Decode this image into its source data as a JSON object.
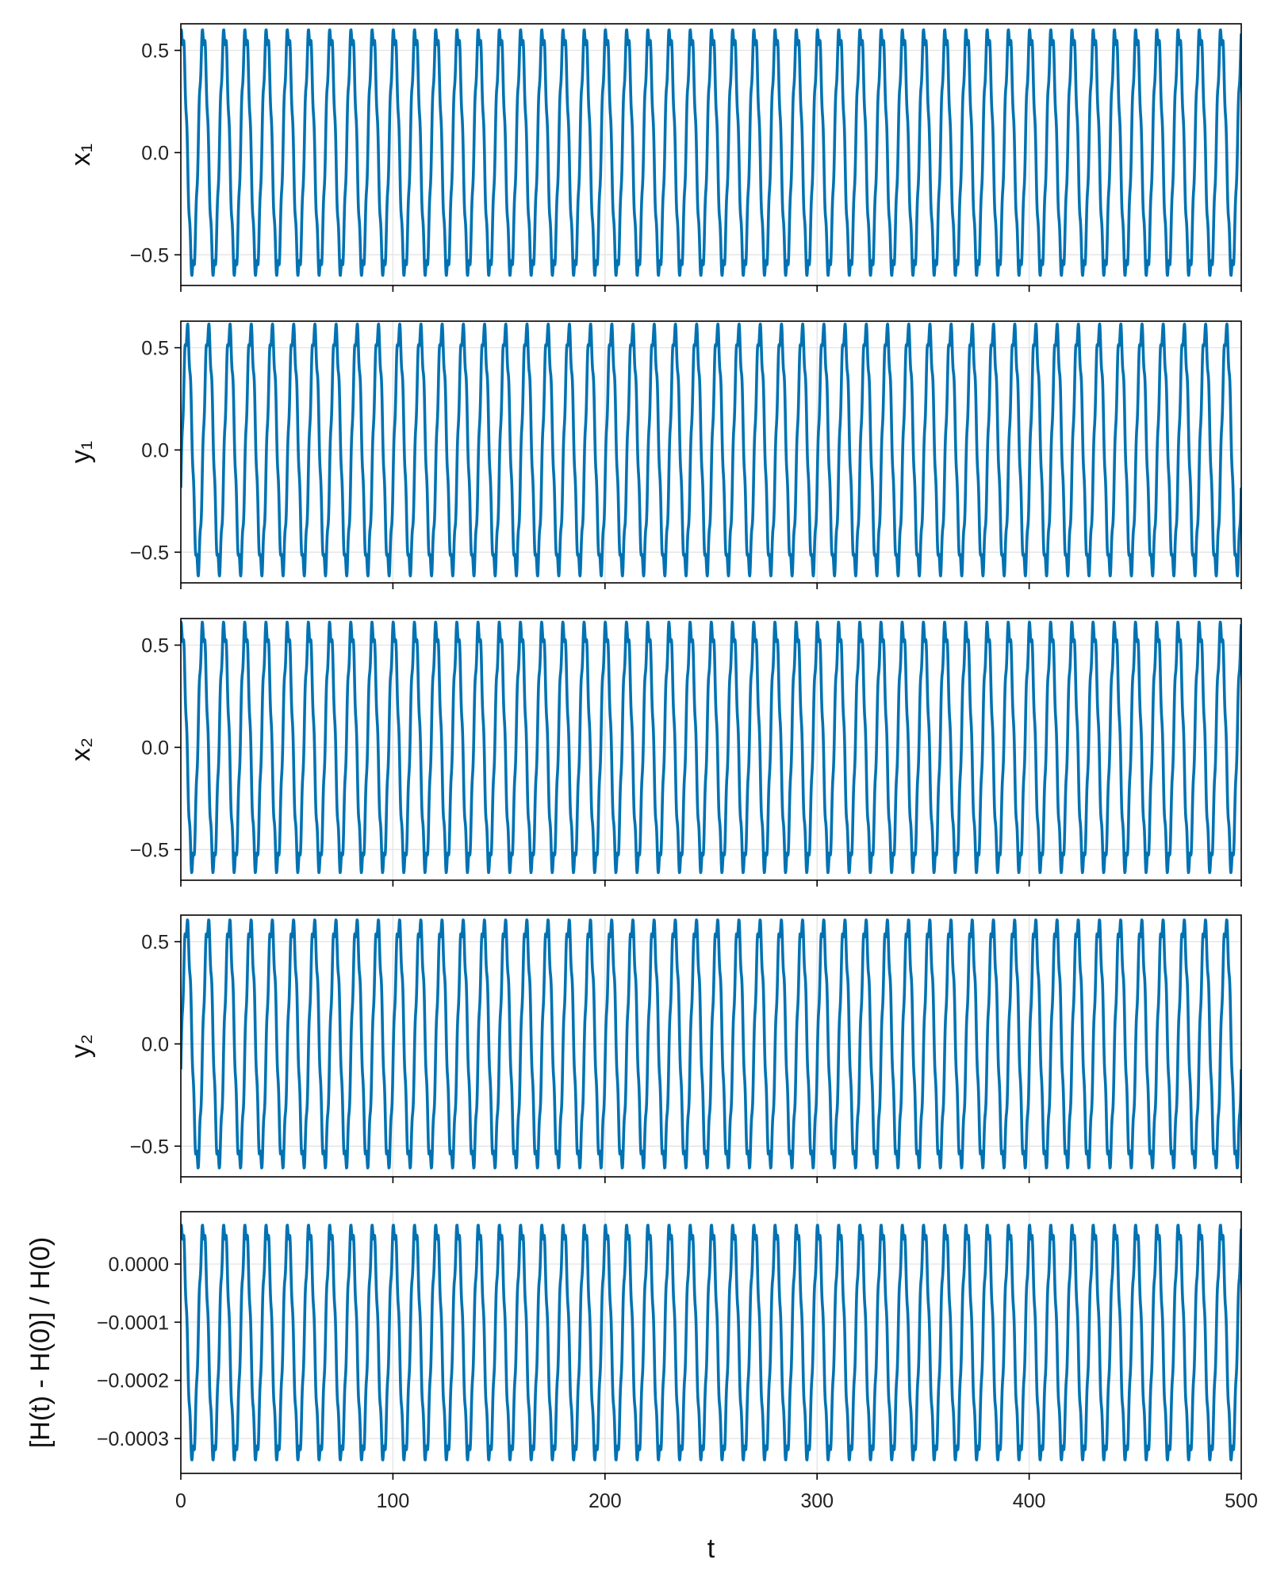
{
  "chart_data": [
    {
      "type": "line",
      "ylabel": "x₁",
      "xlim": [
        0,
        500
      ],
      "ylim": [
        -0.65,
        0.63
      ],
      "x_ticks": [
        0,
        100,
        200,
        300,
        400,
        500
      ],
      "y_ticks": [
        -0.5,
        0.0,
        0.5
      ],
      "y_tick_labels": [
        "−0.5",
        "0.0",
        "0.5"
      ],
      "show_x_tick_labels": false,
      "grid": true,
      "series": [
        {
          "color": "#0072b2",
          "amplitude": 0.58,
          "period": 10.0,
          "phase": 1.2,
          "offset": 0.0,
          "harmonic": 0.09
        }
      ]
    },
    {
      "type": "line",
      "ylabel": "y₁",
      "xlim": [
        0,
        500
      ],
      "ylim": [
        -0.65,
        0.63
      ],
      "x_ticks": [
        0,
        100,
        200,
        300,
        400,
        500
      ],
      "y_ticks": [
        -0.5,
        0.0,
        0.5
      ],
      "y_tick_labels": [
        "−0.5",
        "0.0",
        "0.5"
      ],
      "show_x_tick_labels": false,
      "grid": true,
      "series": [
        {
          "color": "#0072b2",
          "amplitude": 0.58,
          "period": 10.0,
          "phase": -0.3,
          "offset": 0.0,
          "harmonic": 0.09
        }
      ]
    },
    {
      "type": "line",
      "ylabel": "x₂",
      "xlim": [
        0,
        500
      ],
      "ylim": [
        -0.65,
        0.63
      ],
      "x_ticks": [
        0,
        100,
        200,
        300,
        400,
        500
      ],
      "y_ticks": [
        -0.5,
        0.0,
        0.5
      ],
      "y_tick_labels": [
        "−0.5",
        "0.0",
        "0.5"
      ],
      "show_x_tick_labels": false,
      "grid": true,
      "series": [
        {
          "color": "#0072b2",
          "amplitude": 0.58,
          "period": 10.0,
          "phase": 1.3,
          "offset": 0.0,
          "harmonic": 0.09
        }
      ]
    },
    {
      "type": "line",
      "ylabel": "y₂",
      "xlim": [
        0,
        500
      ],
      "ylim": [
        -0.65,
        0.63
      ],
      "x_ticks": [
        0,
        100,
        200,
        300,
        400,
        500
      ],
      "y_ticks": [
        -0.5,
        0.0,
        0.5
      ],
      "y_tick_labels": [
        "−0.5",
        "0.0",
        "0.5"
      ],
      "show_x_tick_labels": false,
      "grid": true,
      "series": [
        {
          "color": "#0072b2",
          "amplitude": 0.58,
          "period": 10.0,
          "phase": -0.2,
          "offset": 0.0,
          "harmonic": 0.09
        }
      ]
    },
    {
      "type": "line",
      "ylabel": "[H(t) - H(0)] / H(0)",
      "xlabel": "t",
      "xlim": [
        0,
        500
      ],
      "ylim": [
        -0.00036,
        9e-05
      ],
      "x_ticks": [
        0,
        100,
        200,
        300,
        400,
        500
      ],
      "x_tick_labels": [
        "0",
        "100",
        "200",
        "300",
        "400",
        "500"
      ],
      "y_ticks": [
        0.0,
        -0.0001,
        -0.0002,
        -0.0003
      ],
      "y_tick_labels": [
        "0.0000",
        "−0.0001",
        "−0.0002",
        "−0.0003"
      ],
      "show_x_tick_labels": true,
      "grid": true,
      "series": [
        {
          "color": "#0072b2",
          "amplitude": 0.000195,
          "period": 10.0,
          "phase": 1.2,
          "offset": -0.000135,
          "harmonic": 3e-05
        }
      ]
    }
  ]
}
